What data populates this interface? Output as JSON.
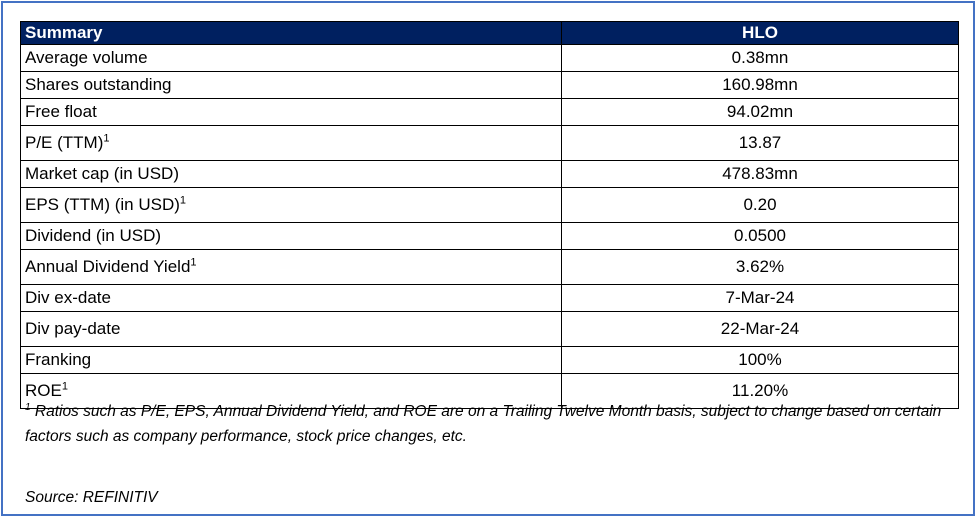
{
  "table": {
    "header": {
      "col1": "Summary",
      "col2": "HLO"
    },
    "rows": [
      {
        "label": "Average volume",
        "sup": "",
        "value": "0.38mn"
      },
      {
        "label": "Shares outstanding",
        "sup": "",
        "value": "160.98mn"
      },
      {
        "label": "Free float",
        "sup": "",
        "value": "94.02mn"
      },
      {
        "label": "P/E (TTM)",
        "sup": "1",
        "value": "13.87"
      },
      {
        "label": "Market cap (in USD)",
        "sup": "",
        "value": "478.83mn"
      },
      {
        "label": "EPS (TTM) (in USD)",
        "sup": "1",
        "value": "0.20"
      },
      {
        "label": "Dividend (in USD)",
        "sup": "",
        "value": "0.0500"
      },
      {
        "label": "Annual Dividend Yield",
        "sup": "1",
        "value": "3.62%"
      },
      {
        "label": "Div ex-date",
        "sup": "",
        "value": "7-Mar-24"
      },
      {
        "label": "Div pay-date",
        "sup": "",
        "value": "22-Mar-24"
      },
      {
        "label": "Franking",
        "sup": "",
        "value": "100%"
      },
      {
        "label": "ROE",
        "sup": "1",
        "value": "11.20%"
      }
    ]
  },
  "footnote": {
    "marker": "1",
    "text": "Ratios such as P/E, EPS, Annual Dividend Yield, and ROE are on a Trailing Twelve Month basis, subject to change based on certain factors such as company performance, stock price changes, etc."
  },
  "source": "Source: REFINITIV",
  "colors": {
    "header_bg": "#002060",
    "header_text": "#ffffff",
    "frame_border": "#4472C4"
  }
}
